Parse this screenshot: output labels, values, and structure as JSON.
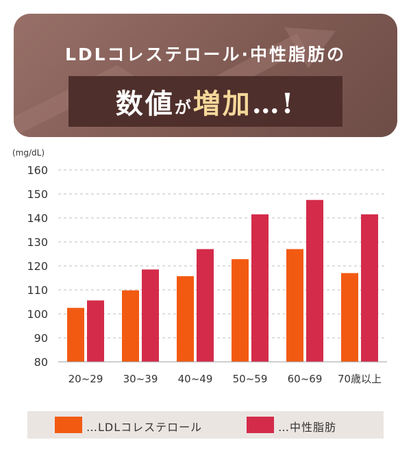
{
  "banner": {
    "line1": "LDLコレステロール·中性脂肪の",
    "line2_parts": [
      {
        "text": "数値",
        "style": "big"
      },
      {
        "text": "が",
        "style": "small"
      },
      {
        "text": "増加",
        "style": "big-accent"
      },
      {
        "text": "…!",
        "style": "big"
      }
    ]
  },
  "chart_data": {
    "type": "bar",
    "unit_label": "(mg/dL)",
    "categories": [
      "20~29",
      "30~39",
      "40~49",
      "50~59",
      "60~69",
      "70歳以上"
    ],
    "series": [
      {
        "name": "LDLコレステロール",
        "color": "#f25a12",
        "values": [
          102.5,
          109.8,
          115.7,
          122.8,
          127.0,
          117.0
        ]
      },
      {
        "name": "中性脂肪",
        "color": "#d42b4a",
        "values": [
          105.6,
          118.5,
          127.0,
          141.5,
          147.5,
          141.5
        ]
      }
    ],
    "yticks": [
      80,
      90,
      100,
      110,
      120,
      130,
      140,
      150,
      160
    ],
    "ylim": [
      80,
      160
    ],
    "grid": "dashed-horizontal",
    "legend_placement": "bottom"
  },
  "legend": {
    "prefix": "…",
    "items": [
      {
        "label": "LDLコレステロール",
        "color": "#f25a12"
      },
      {
        "label": "中性脂肪",
        "color": "#d42b4a"
      }
    ]
  }
}
